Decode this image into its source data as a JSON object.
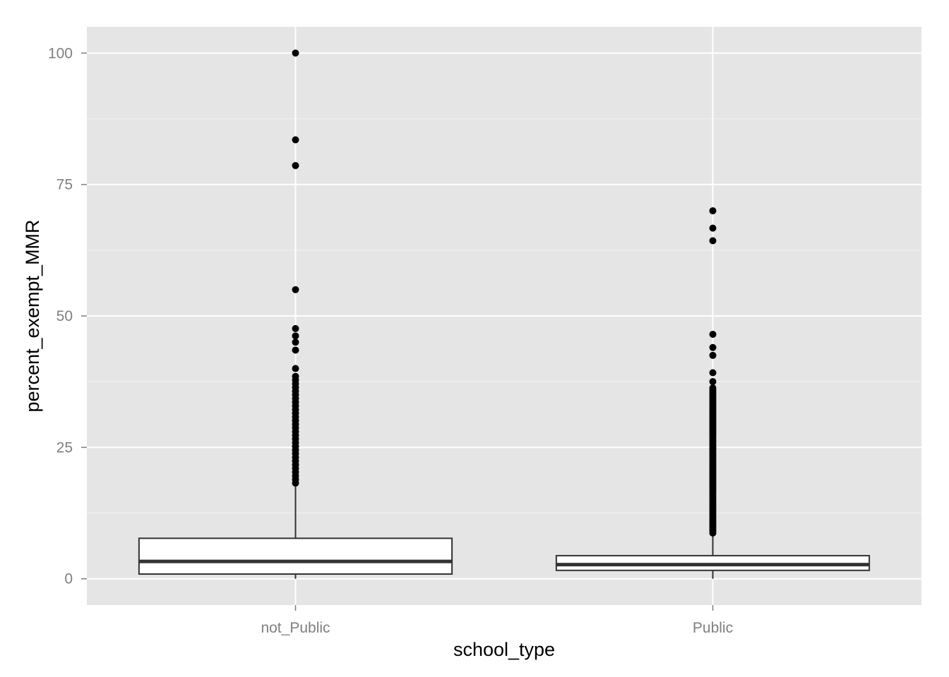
{
  "chart_data": {
    "type": "boxplot",
    "xlabel": "school_type",
    "ylabel": "percent_exempt_MMR",
    "categories": [
      "not_Public",
      "Public"
    ],
    "ylim": [
      -5,
      105
    ],
    "y_ticks": [
      0,
      25,
      50,
      75,
      100
    ],
    "y_minor_ticks": [
      12.5,
      37.5,
      62.5,
      87.5
    ],
    "grid": true,
    "panel_background": "#e5e5e5",
    "grid_color": "#ffffff",
    "boxes": [
      {
        "category": "not_Public",
        "lower_whisker": 0,
        "q1": 0.9,
        "median": 3.3,
        "q3": 7.7,
        "upper_whisker": 18.1,
        "outliers": [
          18.2,
          18.9,
          19.6,
          20.3,
          21.0,
          21.7,
          22.4,
          23.1,
          23.8,
          24.5,
          25.2,
          25.9,
          26.6,
          27.3,
          28.0,
          28.7,
          29.4,
          30.1,
          30.8,
          31.5,
          32.2,
          32.9,
          33.6,
          34.3,
          35.0,
          35.7,
          36.4,
          37.1,
          37.8,
          38.5,
          40.0,
          43.5,
          45.0,
          46.2,
          47.6,
          55.0,
          78.6,
          83.5,
          100
        ]
      },
      {
        "category": "Public",
        "lower_whisker": 0,
        "q1": 1.6,
        "median": 2.7,
        "q3": 4.4,
        "upper_whisker": 8.6,
        "outliers": [
          8.7,
          9.1,
          9.5,
          9.9,
          10.3,
          10.7,
          11.1,
          11.5,
          11.9,
          12.3,
          12.7,
          13.1,
          13.5,
          13.9,
          14.3,
          14.7,
          15.1,
          15.5,
          15.9,
          16.3,
          16.7,
          17.1,
          17.5,
          17.9,
          18.3,
          18.7,
          19.1,
          19.5,
          19.9,
          20.3,
          20.7,
          21.1,
          21.5,
          21.9,
          22.3,
          22.7,
          23.1,
          23.5,
          23.9,
          24.3,
          24.7,
          25.1,
          25.5,
          25.9,
          26.3,
          26.7,
          27.1,
          27.5,
          27.9,
          28.3,
          28.7,
          29.1,
          29.5,
          29.9,
          30.3,
          30.7,
          31.1,
          31.5,
          31.9,
          32.3,
          32.7,
          33.1,
          33.5,
          33.9,
          34.3,
          34.7,
          35.1,
          35.5,
          35.9,
          36.3,
          37.5,
          39.2,
          42.5,
          44.0,
          46.5,
          64.3,
          66.7,
          70.0
        ]
      }
    ]
  }
}
